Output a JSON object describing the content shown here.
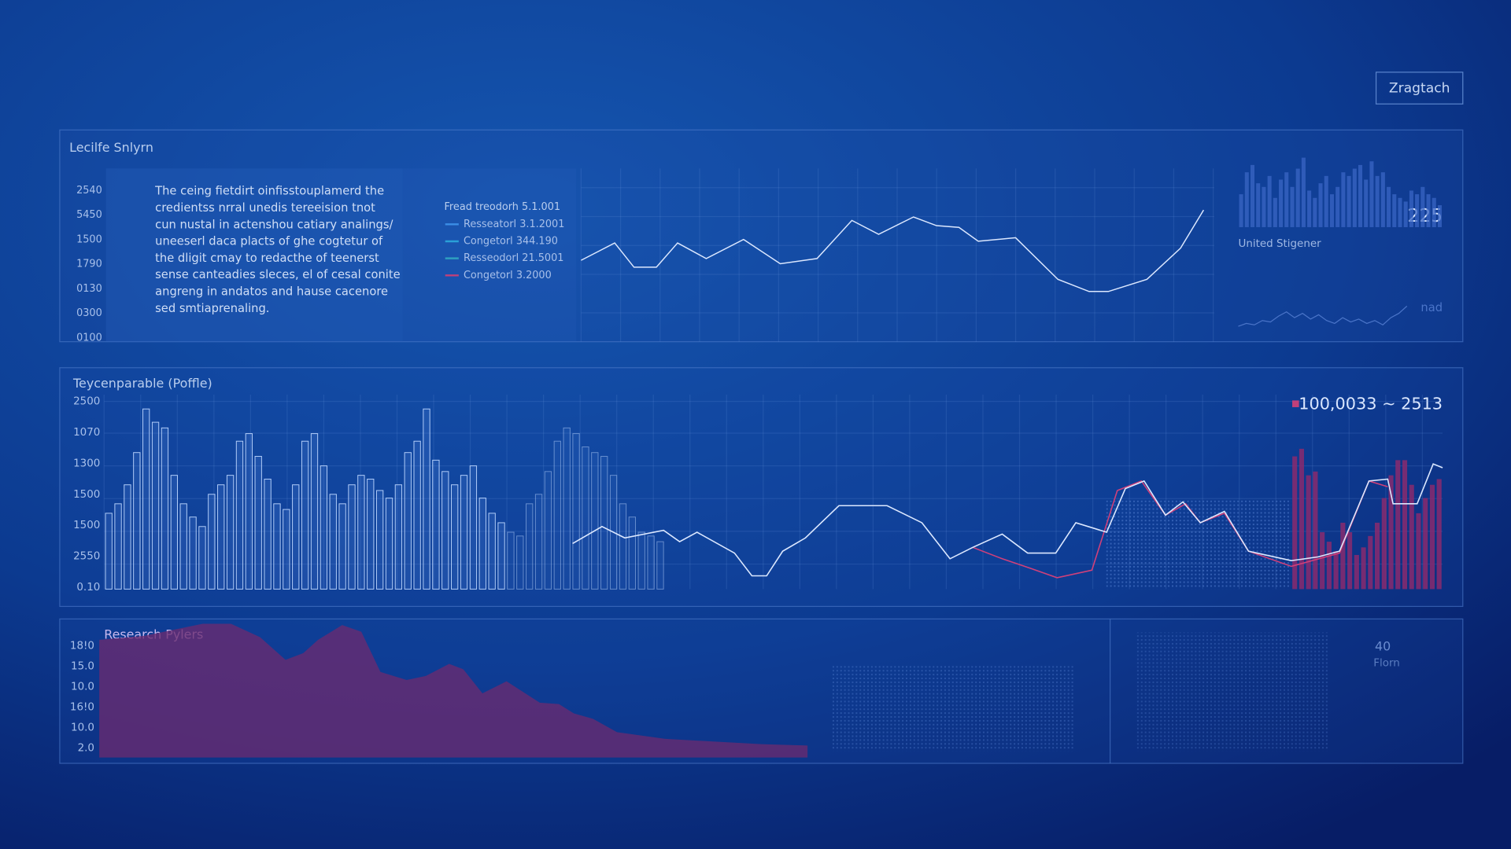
{
  "button": "Zragtach",
  "top_panel": {
    "title": "Lecilfe Snlyrn",
    "ylabels": [
      "2540",
      "5450",
      "1500",
      "1790",
      "0130",
      "0300",
      "0100"
    ],
    "text_lines": [
      "The ceing fietdirt oinfisstouplamerd the",
      "credientss nrral unedis tereeision tnot",
      "cun nustal in actenshou catiary analings/",
      "uneeserl daca placts of ghe cogtetur of",
      "the dligit cmay to redacthe of teenerst",
      "sense canteadies sleces, el of cesal conite",
      "angreng in andatos and hause cacenore",
      "sed smtiaprenaling."
    ],
    "legend": {
      "title": "Fread treodorh 5.1.001",
      "items": [
        {
          "name": "Resseatorl 3.1.2001",
          "color": "#3b8ee6"
        },
        {
          "name": "Congetorl 344.190",
          "color": "#2aa0d8"
        },
        {
          "name": "Resseodorl 21.5001",
          "color": "#2f9fc0"
        },
        {
          "name": "Congetorl 3.2000",
          "color": "#c0407a"
        }
      ]
    },
    "ylim": [
      0,
      100
    ],
    "xlim": [
      0,
      100
    ],
    "line": {
      "color": "#dce8ff",
      "x": [
        0,
        5.4,
        8.5,
        12.1,
        15.5,
        20.1,
        26.1,
        32,
        37.9,
        43.5,
        47.8,
        53.4,
        57.1,
        60.7,
        63.8,
        69.8,
        76.6,
        81.6,
        84.7,
        90.9,
        96.3,
        100
      ],
      "values": [
        47,
        57,
        43,
        43,
        57,
        48,
        59,
        45,
        48,
        70,
        62,
        72,
        67,
        66,
        58,
        60,
        36,
        29,
        29,
        36,
        54,
        76
      ]
    },
    "bars": {
      "color": "#3a66c4",
      "values": [
        45,
        75,
        85,
        60,
        55,
        70,
        40,
        65,
        75,
        55,
        80,
        95,
        50,
        40,
        60,
        70,
        45,
        55,
        75,
        70,
        80,
        85,
        65,
        90,
        70,
        75,
        55,
        45,
        40,
        35,
        50,
        45,
        55,
        45,
        40,
        30
      ]
    },
    "stat": {
      "value": 225,
      "label": "United Stigener"
    },
    "wave": {
      "label": "nad",
      "color": "#4a74c8",
      "values": [
        10,
        20,
        15,
        30,
        25,
        45,
        60,
        40,
        55,
        35,
        50,
        30,
        20,
        40,
        25,
        35,
        20,
        30,
        15,
        40,
        55,
        80
      ]
    }
  },
  "middle_panel": {
    "title": "Teycenparable (Poffle)",
    "ylabels": [
      "2500",
      "1070",
      "1300",
      "1500",
      "1500",
      "2550",
      "0.10"
    ],
    "ylim": [
      0,
      100
    ],
    "xlim": [
      0,
      100
    ],
    "legend_label": "100,0033 ~ 2513",
    "legend_color": "#c0407a",
    "bars": {
      "color": "#bcd6ff",
      "values": [
        40,
        45,
        55,
        72,
        95,
        88,
        85,
        60,
        45,
        38,
        33,
        50,
        55,
        60,
        78,
        82,
        70,
        58,
        45,
        42,
        55,
        78,
        82,
        65,
        50,
        45,
        55,
        60,
        58,
        52,
        48,
        55,
        72,
        78,
        95,
        68,
        62,
        55,
        60,
        65,
        48,
        40,
        35,
        30,
        28,
        45,
        50,
        62,
        78,
        85,
        82,
        75,
        72,
        70,
        60,
        45,
        38,
        30,
        28,
        25
      ]
    },
    "red_bars": {
      "color": "#8a2a6e",
      "values": [
        70,
        74,
        60,
        62,
        30,
        25,
        20,
        35,
        30,
        18,
        22,
        28,
        35,
        48,
        60,
        68,
        68,
        55,
        40,
        48,
        55,
        58
      ]
    },
    "line": {
      "color": "#dce8ff",
      "x": [
        35,
        37.2,
        38.9,
        41.8,
        43,
        44.3,
        47.1,
        48.4,
        49.5,
        50.7,
        52.4,
        54.9,
        58.5,
        61.1,
        63.2,
        64.9,
        67.1,
        69,
        71.1,
        72.6,
        74.9,
        76.3,
        77.7,
        79.3,
        80.6,
        81.9,
        83.7,
        85.5,
        88.7,
        90.7,
        92.3,
        94.5,
        95.9,
        96.3,
        98.1,
        99.3,
        100
      ],
      "values": [
        24,
        33,
        27,
        31,
        25,
        30,
        19,
        7,
        7,
        20,
        27,
        44,
        44,
        35,
        16,
        22,
        29,
        19,
        19,
        35,
        30,
        53,
        57,
        39,
        46,
        35,
        41,
        20,
        15,
        17,
        20,
        57,
        58,
        45,
        45,
        66,
        64
      ]
    },
    "red_line": {
      "color": "#d0407a",
      "x": [
        64.9,
        67.1,
        69.2,
        71.2,
        73.8,
        75.7,
        77.5,
        79.3,
        80.8,
        81.9,
        83.7,
        85.5,
        88.7,
        92.3,
        94.5,
        95.9
      ],
      "values": [
        22,
        16,
        11,
        6,
        10,
        52,
        57,
        39,
        45,
        35,
        40,
        20,
        12,
        19,
        57,
        54
      ]
    }
  },
  "bottom_panel": {
    "title": "Research Pylers",
    "ylabels": [
      "18!0",
      "15.0",
      "10.0",
      "16!0",
      "10.0",
      "2.0"
    ],
    "ylim": [
      0,
      100
    ],
    "xlim": [
      0,
      100
    ],
    "area": {
      "color": "#6a2a70",
      "x": [
        0,
        6.4,
        14.6,
        18.6,
        22.7,
        26.3,
        28.8,
        30.9,
        34.3,
        37,
        39.7,
        43.4,
        46.1,
        49.4,
        51.4,
        54.1,
        57.5,
        62.2,
        64.9,
        67,
        69.7,
        73.1,
        79.9,
        86.7,
        93.5,
        100
      ],
      "values": [
        88,
        91,
        100,
        100,
        90,
        73,
        78,
        88,
        99,
        94,
        64,
        58,
        61,
        70,
        66,
        48,
        57,
        41,
        40,
        33,
        29,
        19,
        14,
        12,
        10,
        9
      ]
    },
    "stat": {
      "value": 40,
      "label": "Florn"
    }
  }
}
